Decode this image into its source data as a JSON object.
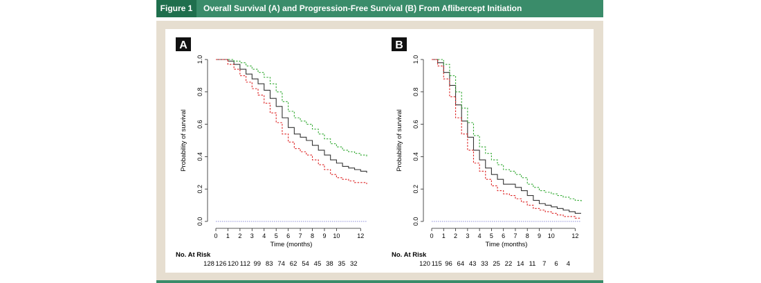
{
  "figure": {
    "label": "Figure 1",
    "title": "Overall Survival (A) and Progression-Free Survival (B) From Aflibercept Initiation"
  },
  "chart_data": [
    {
      "type": "line",
      "panel_label": "A",
      "xlabel": "Time (months)",
      "ylabel": "Probability of survival",
      "xlim": [
        0,
        12.5
      ],
      "ylim": [
        0,
        1.0
      ],
      "x_ticks": [
        0,
        1,
        2,
        3,
        4,
        5,
        6,
        7,
        8,
        9,
        10,
        12
      ],
      "y_ticks": [
        0.0,
        0.2,
        0.4,
        0.6,
        0.8,
        1.0
      ],
      "y_tick_labels": [
        "0.0",
        "0.2",
        "0.4",
        "0.6",
        "0.8",
        "1.0"
      ],
      "reference_line": 0,
      "series": [
        {
          "name": "Survival estimate",
          "color": "#333333",
          "style": "solid",
          "x": [
            0,
            1,
            1.5,
            2,
            2.5,
            3,
            3.5,
            4,
            4.5,
            5,
            5.5,
            6,
            6.5,
            7,
            7.5,
            8,
            8.5,
            9,
            9.5,
            10,
            10.5,
            11,
            11.5,
            12,
            12.5
          ],
          "y": [
            1.0,
            0.99,
            0.97,
            0.94,
            0.91,
            0.88,
            0.85,
            0.81,
            0.76,
            0.71,
            0.64,
            0.58,
            0.54,
            0.52,
            0.5,
            0.47,
            0.44,
            0.41,
            0.38,
            0.36,
            0.34,
            0.33,
            0.32,
            0.31,
            0.3
          ]
        },
        {
          "name": "Upper 95% CI",
          "color": "#33aa33",
          "style": "dashed",
          "x": [
            0,
            1,
            1.5,
            2,
            2.5,
            3,
            3.5,
            4,
            4.5,
            5,
            5.5,
            6,
            6.5,
            7,
            7.5,
            8,
            8.5,
            9,
            9.5,
            10,
            10.5,
            11,
            11.5,
            12,
            12.5
          ],
          "y": [
            1.0,
            1.0,
            0.99,
            0.98,
            0.96,
            0.94,
            0.92,
            0.89,
            0.85,
            0.8,
            0.74,
            0.68,
            0.64,
            0.62,
            0.6,
            0.57,
            0.54,
            0.51,
            0.48,
            0.46,
            0.44,
            0.43,
            0.42,
            0.41,
            0.4
          ]
        },
        {
          "name": "Lower 95% CI",
          "color": "#dd2222",
          "style": "dashed",
          "x": [
            0,
            1,
            1.5,
            2,
            2.5,
            3,
            3.5,
            4,
            4.5,
            5,
            5.5,
            6,
            6.5,
            7,
            7.5,
            8,
            8.5,
            9,
            9.5,
            10,
            10.5,
            11,
            11.5,
            12,
            12.5
          ],
          "y": [
            1.0,
            0.97,
            0.94,
            0.9,
            0.86,
            0.82,
            0.78,
            0.73,
            0.67,
            0.61,
            0.54,
            0.49,
            0.45,
            0.43,
            0.41,
            0.38,
            0.35,
            0.32,
            0.29,
            0.27,
            0.26,
            0.25,
            0.24,
            0.24,
            0.23
          ]
        }
      ],
      "at_risk_label": "No. At Risk",
      "at_risk": [
        128,
        126,
        120,
        112,
        99,
        83,
        74,
        62,
        54,
        45,
        38,
        35,
        32
      ],
      "at_risk_x": [
        0,
        1,
        2,
        3,
        4,
        5,
        6,
        7,
        8,
        9,
        10,
        11,
        12
      ]
    },
    {
      "type": "line",
      "panel_label": "B",
      "xlabel": "Time (months)",
      "ylabel": "Probability of survival",
      "xlim": [
        0,
        12.5
      ],
      "ylim": [
        0,
        1.0
      ],
      "x_ticks": [
        0,
        1,
        2,
        3,
        4,
        5,
        6,
        7,
        8,
        9,
        10,
        12
      ],
      "y_ticks": [
        0.0,
        0.2,
        0.4,
        0.6,
        0.8,
        1.0
      ],
      "y_tick_labels": [
        "0.0",
        "0.2",
        "0.4",
        "0.6",
        "0.8",
        "1.0"
      ],
      "reference_line": 0,
      "series": [
        {
          "name": "Survival estimate",
          "color": "#333333",
          "style": "solid",
          "x": [
            0,
            0.5,
            1,
            1.5,
            2,
            2.5,
            3,
            3.5,
            4,
            4.5,
            5,
            5.5,
            6,
            6.5,
            7,
            7.5,
            8,
            8.5,
            9,
            9.5,
            10,
            10.5,
            11,
            11.5,
            12,
            12.5
          ],
          "y": [
            1.0,
            0.98,
            0.92,
            0.84,
            0.72,
            0.62,
            0.52,
            0.44,
            0.38,
            0.33,
            0.29,
            0.26,
            0.23,
            0.23,
            0.21,
            0.19,
            0.16,
            0.13,
            0.11,
            0.1,
            0.09,
            0.08,
            0.07,
            0.06,
            0.05,
            0.05
          ]
        },
        {
          "name": "Upper 95% CI",
          "color": "#33aa33",
          "style": "dashed",
          "x": [
            0,
            0.5,
            1,
            1.5,
            2,
            2.5,
            3,
            3.5,
            4,
            4.5,
            5,
            5.5,
            6,
            6.5,
            7,
            7.5,
            8,
            8.5,
            9,
            9.5,
            10,
            10.5,
            11,
            11.5,
            12,
            12.5
          ],
          "y": [
            1.0,
            1.0,
            0.97,
            0.9,
            0.8,
            0.7,
            0.61,
            0.53,
            0.46,
            0.42,
            0.38,
            0.35,
            0.32,
            0.31,
            0.29,
            0.27,
            0.23,
            0.21,
            0.19,
            0.18,
            0.17,
            0.16,
            0.15,
            0.14,
            0.13,
            0.12
          ]
        },
        {
          "name": "Lower 95% CI",
          "color": "#dd2222",
          "style": "dashed",
          "x": [
            0,
            0.5,
            1,
            1.5,
            2,
            2.5,
            3,
            3.5,
            4,
            4.5,
            5,
            5.5,
            6,
            6.5,
            7,
            7.5,
            8,
            8.5,
            9,
            9.5,
            10,
            10.5,
            11,
            11.5,
            12,
            12.5
          ],
          "y": [
            1.0,
            0.96,
            0.88,
            0.77,
            0.64,
            0.54,
            0.44,
            0.36,
            0.31,
            0.26,
            0.22,
            0.19,
            0.17,
            0.16,
            0.14,
            0.12,
            0.1,
            0.08,
            0.07,
            0.06,
            0.05,
            0.04,
            0.03,
            0.03,
            0.02,
            0.02
          ]
        }
      ],
      "at_risk_label": "No. At Risk",
      "at_risk": [
        120,
        115,
        96,
        64,
        43,
        33,
        25,
        22,
        14,
        11,
        7,
        6,
        4
      ],
      "at_risk_x": [
        0,
        1,
        2,
        3,
        4,
        5,
        6,
        7,
        8,
        9,
        10,
        11,
        12
      ]
    }
  ]
}
